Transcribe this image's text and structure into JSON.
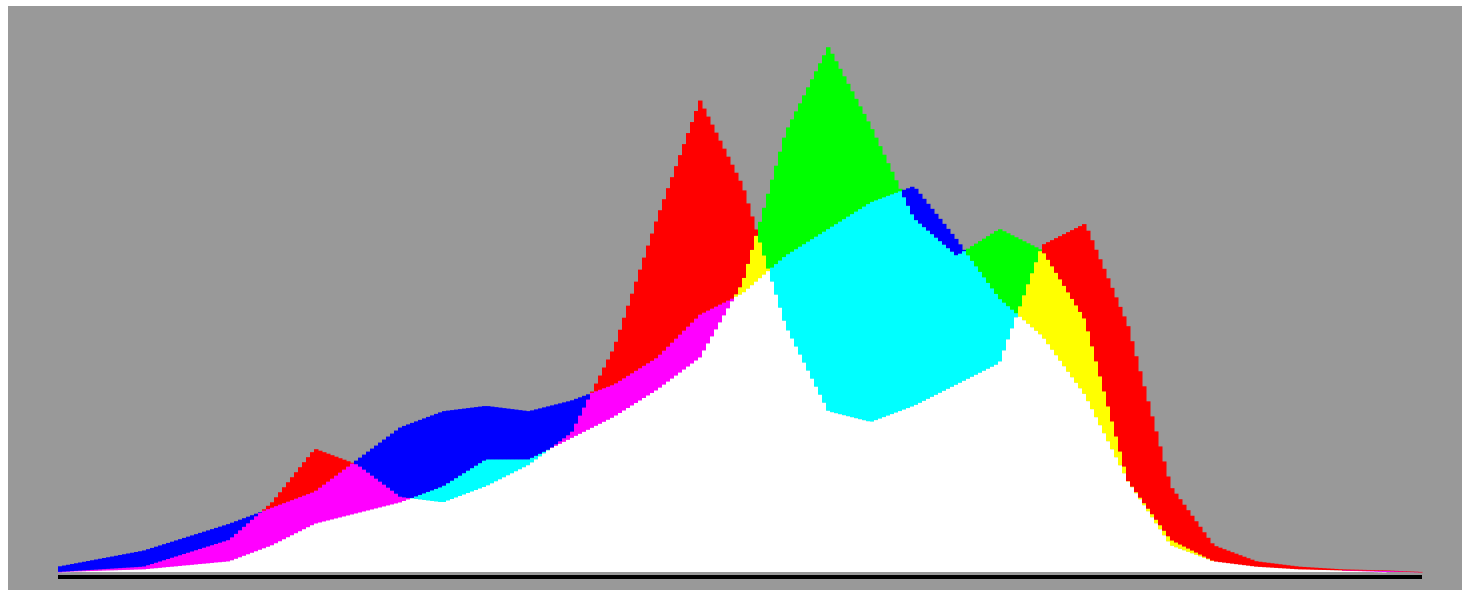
{
  "chart_data": {
    "type": "area",
    "title": "",
    "xlabel": "",
    "ylabel": "",
    "xlim": [
      0,
      255
    ],
    "ylim": [
      0,
      100
    ],
    "grid": false,
    "legend": "none",
    "background_color": "#999999",
    "baseline_color": "#000000",
    "blend": "additive-rgb",
    "x": [
      0,
      16,
      32,
      40,
      48,
      56,
      64,
      72,
      80,
      88,
      96,
      104,
      112,
      120,
      128,
      136,
      144,
      152,
      160,
      168,
      176,
      184,
      192,
      200,
      208,
      216,
      224,
      232,
      240,
      248,
      255
    ],
    "series": [
      {
        "name": "",
        "channel": "red",
        "color": "#ff0000",
        "values": [
          0,
          1,
          6,
          13,
          23,
          20,
          14,
          13,
          16,
          20,
          26,
          42,
          66,
          88,
          72,
          46,
          30,
          28,
          31,
          35,
          39,
          61,
          65,
          46,
          16,
          5,
          2,
          1,
          0.5,
          0.3,
          0
        ]
      },
      {
        "name": "",
        "channel": "green",
        "color": "#00ff00",
        "values": [
          0,
          0.5,
          2,
          5,
          9,
          11,
          13,
          16,
          21,
          21,
          25,
          29,
          34,
          40,
          54,
          82,
          98,
          83,
          66,
          59,
          64,
          60,
          47,
          17,
          6,
          2,
          1,
          0.5,
          0.3,
          0,
          0
        ]
      },
      {
        "name": "",
        "channel": "blue",
        "color": "#0000ff",
        "values": [
          1,
          4,
          9,
          12,
          15,
          21,
          27,
          30,
          31,
          30,
          32,
          35,
          40,
          48,
          52,
          59,
          64,
          69,
          72,
          62,
          51,
          44,
          33,
          17,
          5,
          2,
          1,
          0.5,
          0.3,
          0.2,
          0
        ]
      }
    ]
  }
}
